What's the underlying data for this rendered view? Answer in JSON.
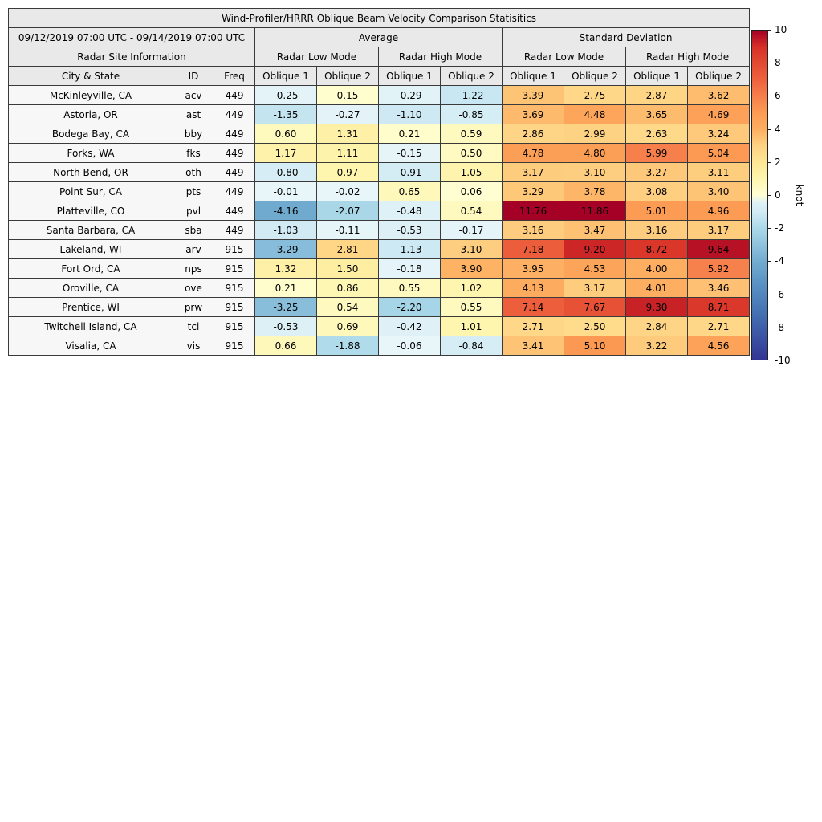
{
  "chart_data": {
    "type": "table",
    "title": "Wind-Profiler/HRRR Oblique Beam Velocity Comparison Statisitics",
    "date_range": "09/12/2019 07:00 UTC - 09/14/2019 07:00 UTC",
    "group_headers": [
      "Average",
      "Standard Deviation"
    ],
    "site_info_header": "Radar Site Information",
    "mode_headers": [
      "Radar Low Mode",
      "Radar High Mode",
      "Radar Low Mode",
      "Radar High Mode"
    ],
    "columns": [
      "City & State",
      "ID",
      "Freq",
      "Oblique 1",
      "Oblique 2",
      "Oblique 1",
      "Oblique 2",
      "Oblique 1",
      "Oblique 2",
      "Oblique 1",
      "Oblique 2"
    ],
    "value_format_decimals": 2,
    "rows": [
      {
        "city": "McKinleyville, CA",
        "id": "acv",
        "freq": "449",
        "values": [
          -0.25,
          0.15,
          -0.29,
          -1.22,
          3.39,
          2.75,
          2.87,
          3.62
        ]
      },
      {
        "city": "Astoria, OR",
        "id": "ast",
        "freq": "449",
        "values": [
          -1.35,
          -0.27,
          -1.1,
          -0.85,
          3.69,
          4.48,
          3.65,
          4.69
        ]
      },
      {
        "city": "Bodega Bay, CA",
        "id": "bby",
        "freq": "449",
        "values": [
          0.6,
          1.31,
          0.21,
          0.59,
          2.86,
          2.99,
          2.63,
          3.24
        ]
      },
      {
        "city": "Forks, WA",
        "id": "fks",
        "freq": "449",
        "values": [
          1.17,
          1.11,
          -0.15,
          0.5,
          4.78,
          4.8,
          5.99,
          5.04
        ]
      },
      {
        "city": "North Bend, OR",
        "id": "oth",
        "freq": "449",
        "values": [
          -0.8,
          0.97,
          -0.91,
          1.05,
          3.17,
          3.1,
          3.27,
          3.11
        ]
      },
      {
        "city": "Point Sur, CA",
        "id": "pts",
        "freq": "449",
        "values": [
          -0.01,
          -0.02,
          0.65,
          0.06,
          3.29,
          3.78,
          3.08,
          3.4
        ]
      },
      {
        "city": "Platteville, CO",
        "id": "pvl",
        "freq": "449",
        "values": [
          -4.16,
          -2.07,
          -0.48,
          0.54,
          11.76,
          11.86,
          5.01,
          4.96
        ]
      },
      {
        "city": "Santa Barbara, CA",
        "id": "sba",
        "freq": "449",
        "values": [
          -1.03,
          -0.11,
          -0.53,
          -0.17,
          3.16,
          3.47,
          3.16,
          3.17
        ]
      },
      {
        "city": "Lakeland, WI",
        "id": "arv",
        "freq": "915",
        "values": [
          -3.29,
          2.81,
          -1.13,
          3.1,
          7.18,
          9.2,
          8.72,
          9.64
        ]
      },
      {
        "city": "Fort Ord, CA",
        "id": "nps",
        "freq": "915",
        "values": [
          1.32,
          1.5,
          -0.18,
          3.9,
          3.95,
          4.53,
          4.0,
          5.92
        ]
      },
      {
        "city": "Oroville, CA",
        "id": "ove",
        "freq": "915",
        "values": [
          0.21,
          0.86,
          0.55,
          1.02,
          4.13,
          3.17,
          4.01,
          3.46
        ]
      },
      {
        "city": "Prentice, WI",
        "id": "prw",
        "freq": "915",
        "values": [
          -3.25,
          0.54,
          -2.2,
          0.55,
          7.14,
          7.67,
          9.3,
          8.71
        ]
      },
      {
        "city": "Twitchell Island, CA",
        "id": "tci",
        "freq": "915",
        "values": [
          -0.53,
          0.69,
          -0.42,
          1.01,
          2.71,
          2.5,
          2.84,
          2.71
        ]
      },
      {
        "city": "Visalia, CA",
        "id": "vis",
        "freq": "915",
        "values": [
          0.66,
          -1.88,
          -0.06,
          -0.84,
          3.41,
          5.1,
          3.22,
          4.56
        ]
      }
    ],
    "colormap": {
      "name": "RdYlBu_r",
      "vmin": -10,
      "vmax": 10,
      "negative_stops": [
        [
          0,
          "#e9f6f9"
        ],
        [
          1,
          "#d2ebf4"
        ],
        [
          2,
          "#abd9e9"
        ],
        [
          3,
          "#8fc3dd"
        ],
        [
          4,
          "#74add1"
        ],
        [
          5,
          "#5f99c7"
        ],
        [
          7,
          "#4575b4"
        ],
        [
          10,
          "#313695"
        ]
      ],
      "positive_stops": [
        [
          0,
          "#ffffd4"
        ],
        [
          1,
          "#fef5ae"
        ],
        [
          2,
          "#fee695"
        ],
        [
          3,
          "#fed283"
        ],
        [
          4,
          "#fdae61"
        ],
        [
          5,
          "#fc9b53"
        ],
        [
          6,
          "#f67f4b"
        ],
        [
          7,
          "#ee613e"
        ],
        [
          8,
          "#e34a33"
        ],
        [
          9,
          "#d73027"
        ],
        [
          10,
          "#a50026"
        ]
      ]
    },
    "colorbar": {
      "label": "knot",
      "ticks": [
        10,
        8,
        6,
        4,
        2,
        0,
        -2,
        -4,
        -6,
        -8,
        -10
      ]
    },
    "styles": {
      "header_bg": "#e9e9e9",
      "row_label_bg": "#f7f7f7",
      "border_color": "#3a3a3a"
    }
  }
}
